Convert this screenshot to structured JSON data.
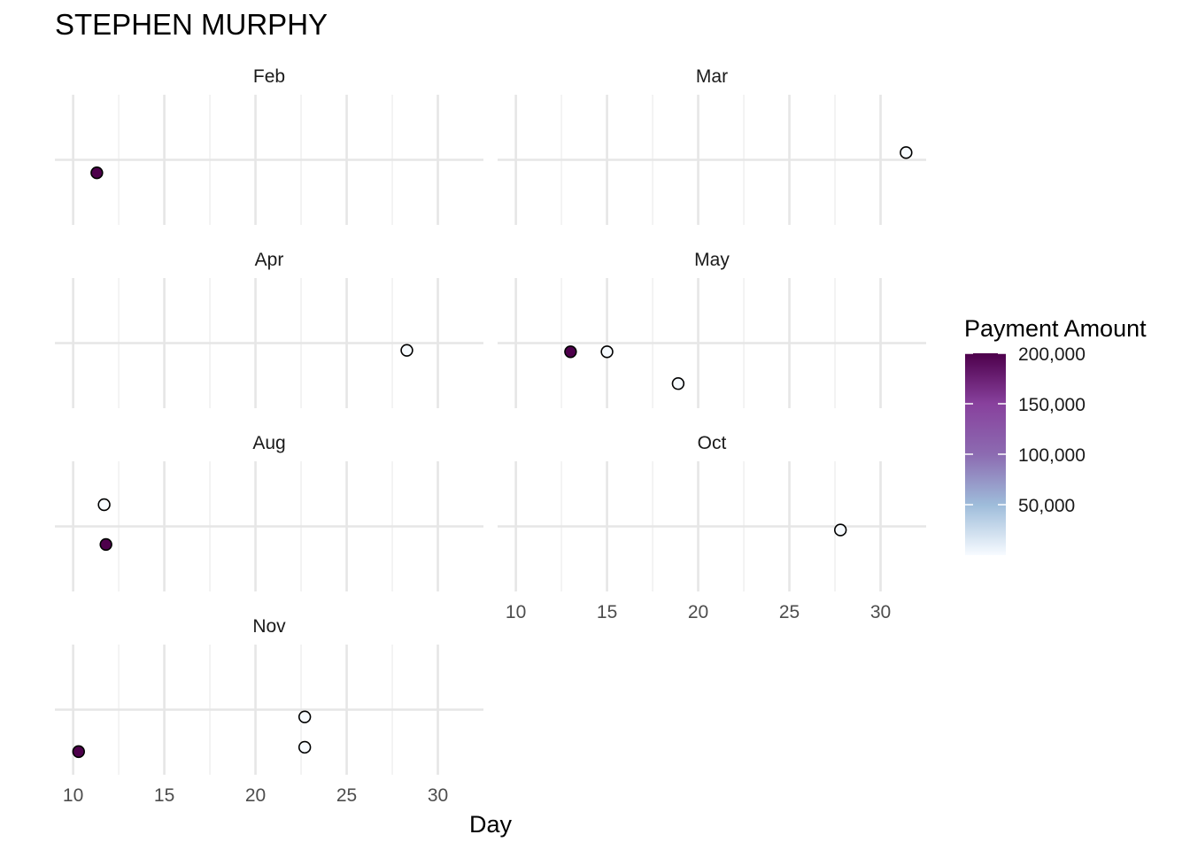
{
  "chart_data": {
    "type": "scatter",
    "title": "STEPHEN MURPHY",
    "xlabel": "Day",
    "ylabel": "",
    "xlim": [
      9,
      32.5
    ],
    "x_ticks": [
      10,
      15,
      20,
      25,
      30
    ],
    "grid": true,
    "facet_by": "month",
    "legend": {
      "title": "Payment Amount",
      "position": "right",
      "type": "colorbar",
      "range": [
        0,
        200000
      ],
      "ticks": [
        {
          "value": 200000,
          "label": "200,000"
        },
        {
          "value": 150000,
          "label": "150,000"
        },
        {
          "value": 100000,
          "label": "100,000"
        },
        {
          "value": 50000,
          "label": "50,000"
        }
      ],
      "colors": [
        "#f7fbff",
        "#9ebcda",
        "#8c6bb1",
        "#88419d",
        "#4d004b"
      ]
    },
    "panels": [
      {
        "month": "Feb",
        "points": [
          {
            "day": 11.3,
            "y": -0.18,
            "amount": 200000
          }
        ]
      },
      {
        "month": "Mar",
        "points": [
          {
            "day": 31.4,
            "y": 0.1,
            "amount": 0
          }
        ]
      },
      {
        "month": "Apr",
        "points": [
          {
            "day": 28.3,
            "y": -0.1,
            "amount": 0
          }
        ]
      },
      {
        "month": "May",
        "points": [
          {
            "day": 13.0,
            "y": -0.12,
            "amount": 200000
          },
          {
            "day": 15.0,
            "y": -0.12,
            "amount": 0
          },
          {
            "day": 18.9,
            "y": -0.56,
            "amount": 0
          }
        ]
      },
      {
        "month": "Aug",
        "points": [
          {
            "day": 11.7,
            "y": 0.3,
            "amount": 0
          },
          {
            "day": 11.8,
            "y": -0.25,
            "amount": 200000
          }
        ]
      },
      {
        "month": "Oct",
        "points": [
          {
            "day": 27.8,
            "y": -0.05,
            "amount": 0
          }
        ]
      },
      {
        "month": "Nov",
        "points": [
          {
            "day": 22.7,
            "y": -0.1,
            "amount": 0
          },
          {
            "day": 22.7,
            "y": -0.52,
            "amount": 0
          },
          {
            "day": 10.3,
            "y": -0.58,
            "amount": 200000
          }
        ]
      }
    ]
  }
}
